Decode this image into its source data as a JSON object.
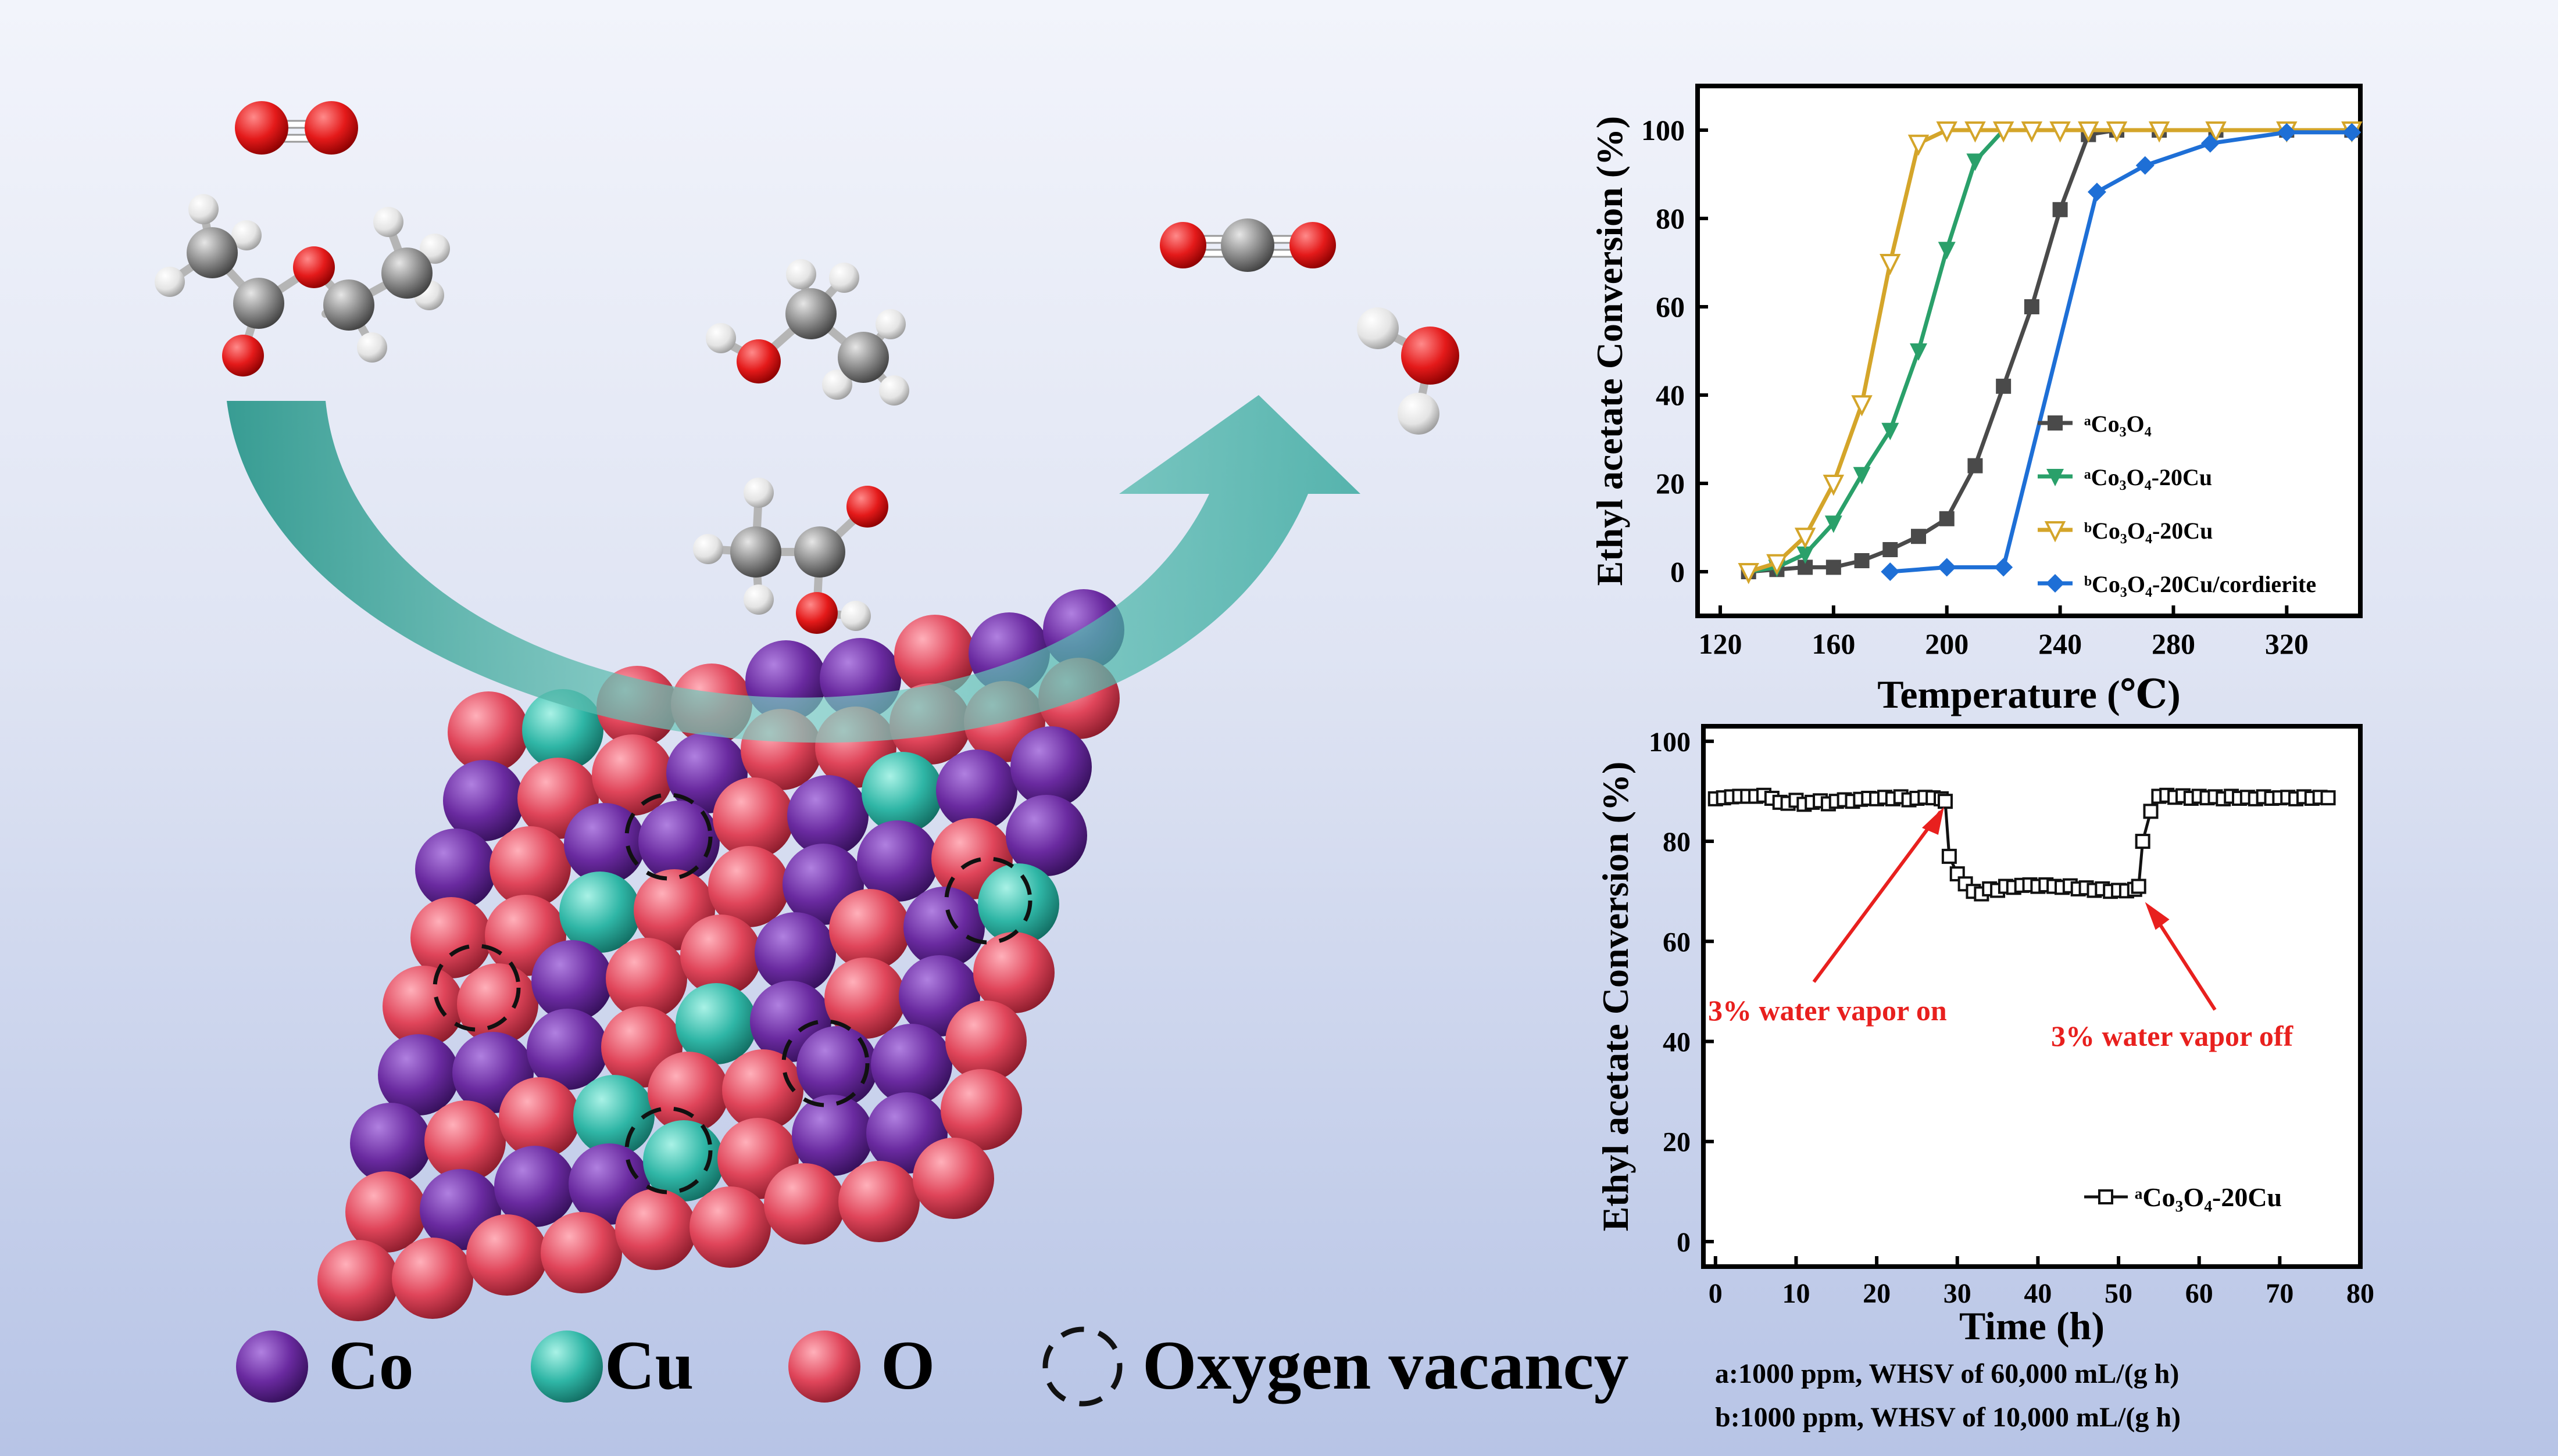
{
  "legend_elements": [
    {
      "label": "Co",
      "color": "#6a2aa0"
    },
    {
      "label": "Cu",
      "color": "#2fb6a6"
    },
    {
      "label": "O",
      "color": "#e0455a"
    },
    {
      "label": "Oxygen vacancy"
    }
  ],
  "footnotes": {
    "a": "a:1000 ppm, WHSV of 60,000 mL/(g h)",
    "b": "b:1000 ppm, WHSV of 10,000 mL/(g h)"
  },
  "chart_data": [
    {
      "type": "line",
      "xlabel": "Temperature (℃)",
      "ylabel": "Ethyl acetate Conversion (%)",
      "xlim": [
        112,
        346
      ],
      "ylim": [
        -10,
        110
      ],
      "xticks": [
        120,
        160,
        200,
        240,
        280,
        320
      ],
      "yticks": [
        0,
        20,
        40,
        60,
        80,
        100
      ],
      "legend_position": "bottom-right",
      "series": [
        {
          "name": "ᵃCo₃O₄",
          "color": "#4a4a4a",
          "marker": "square",
          "x": [
            130,
            140,
            150,
            160,
            170,
            180,
            190,
            200,
            210,
            220,
            230,
            240,
            250,
            260,
            275,
            295,
            320,
            343
          ],
          "y": [
            0,
            0.5,
            1,
            1,
            2.5,
            5,
            8,
            12,
            24,
            42,
            60,
            82,
            99,
            100,
            100,
            100,
            100,
            100
          ]
        },
        {
          "name": "ᵃCo₃O₄-20Cu",
          "color": "#2aa06a",
          "marker": "triangle-down",
          "x": [
            130,
            140,
            150,
            160,
            170,
            180,
            190,
            200,
            210,
            220,
            230,
            240,
            250,
            260,
            275,
            295,
            320,
            343
          ],
          "y": [
            0,
            1,
            4,
            11,
            22,
            32,
            50,
            73,
            93,
            100,
            100,
            100,
            100,
            100,
            100,
            100,
            100,
            100
          ]
        },
        {
          "name": "ᵇCo₃O₄-20Cu",
          "color": "#d4a52a",
          "marker": "triangle-down-open",
          "x": [
            130,
            140,
            150,
            160,
            170,
            180,
            190,
            200,
            210,
            220,
            230,
            240,
            250,
            260,
            275,
            295,
            320,
            343
          ],
          "y": [
            0,
            2,
            8,
            20,
            38,
            70,
            97,
            100,
            100,
            100,
            100,
            100,
            100,
            100,
            100,
            100,
            100,
            100
          ]
        },
        {
          "name": "ᵇCo₃O₄-20Cu/cordierite",
          "color": "#1e6fd6",
          "marker": "diamond",
          "x": [
            180,
            200,
            220,
            253,
            270,
            293,
            320,
            343
          ],
          "y": [
            0,
            1,
            1,
            86,
            92,
            97,
            99.5,
            99.5
          ]
        }
      ]
    },
    {
      "type": "line",
      "xlabel": "Time (h)",
      "ylabel": "Ethyl acetate Conversion (%)",
      "xlim": [
        -1.5,
        80
      ],
      "ylim": [
        -5,
        103
      ],
      "xticks": [
        0,
        10,
        20,
        30,
        40,
        50,
        60,
        70,
        80
      ],
      "yticks": [
        0,
        20,
        40,
        60,
        80,
        100
      ],
      "legend_position": "bottom-right",
      "series": [
        {
          "name": "ᵃCo₃O₄-20Cu",
          "color": "#111111",
          "marker": "square-open",
          "x": [
            0,
            1,
            2,
            3,
            4,
            5,
            6,
            7,
            8,
            9,
            10,
            11,
            12,
            13,
            14,
            15,
            16,
            17,
            18,
            19,
            20,
            21,
            22,
            23,
            24,
            25,
            26,
            27,
            28,
            28.5,
            29,
            30,
            31,
            32,
            33,
            34,
            35,
            36,
            37,
            38,
            39,
            40,
            41,
            42,
            43,
            44,
            45,
            46,
            47,
            48,
            49,
            50,
            51,
            52,
            52.5,
            53,
            54,
            55,
            56,
            57,
            58,
            59,
            60,
            61,
            62,
            63,
            64,
            65,
            66,
            67,
            68,
            69,
            70,
            71,
            72,
            73,
            74,
            75,
            76
          ],
          "y": [
            88.5,
            88.7,
            88.9,
            89,
            89,
            89,
            89.2,
            88.6,
            87.8,
            87.6,
            88.2,
            87.4,
            87.8,
            88.1,
            87.5,
            88,
            88.3,
            88,
            88.4,
            88.6,
            88.5,
            88.8,
            88.5,
            88.9,
            88.3,
            88.6,
            88.8,
            88.7,
            88.5,
            88,
            77,
            73.5,
            71.5,
            70,
            69.5,
            70.5,
            70.2,
            71,
            70.8,
            71.2,
            71.3,
            71,
            71.3,
            71,
            70.8,
            71.1,
            70.5,
            70.7,
            70.2,
            70.5,
            70,
            70.2,
            70.1,
            70.4,
            71,
            80,
            86,
            89,
            89.2,
            88.8,
            89.1,
            88.6,
            89,
            88.7,
            88.9,
            88.5,
            89,
            88.6,
            88.8,
            88.5,
            88.9,
            88.6,
            88.7,
            88.8,
            88.5,
            88.9,
            88.6,
            88.8,
            88.7
          ]
        }
      ],
      "annotations": [
        {
          "text": "3% water vapor on",
          "color": "#e8201e",
          "x": 28.5,
          "y": 88.5
        },
        {
          "text": "3% water vapor off",
          "color": "#e8201e",
          "x": 53,
          "y": 69.5
        }
      ]
    }
  ]
}
